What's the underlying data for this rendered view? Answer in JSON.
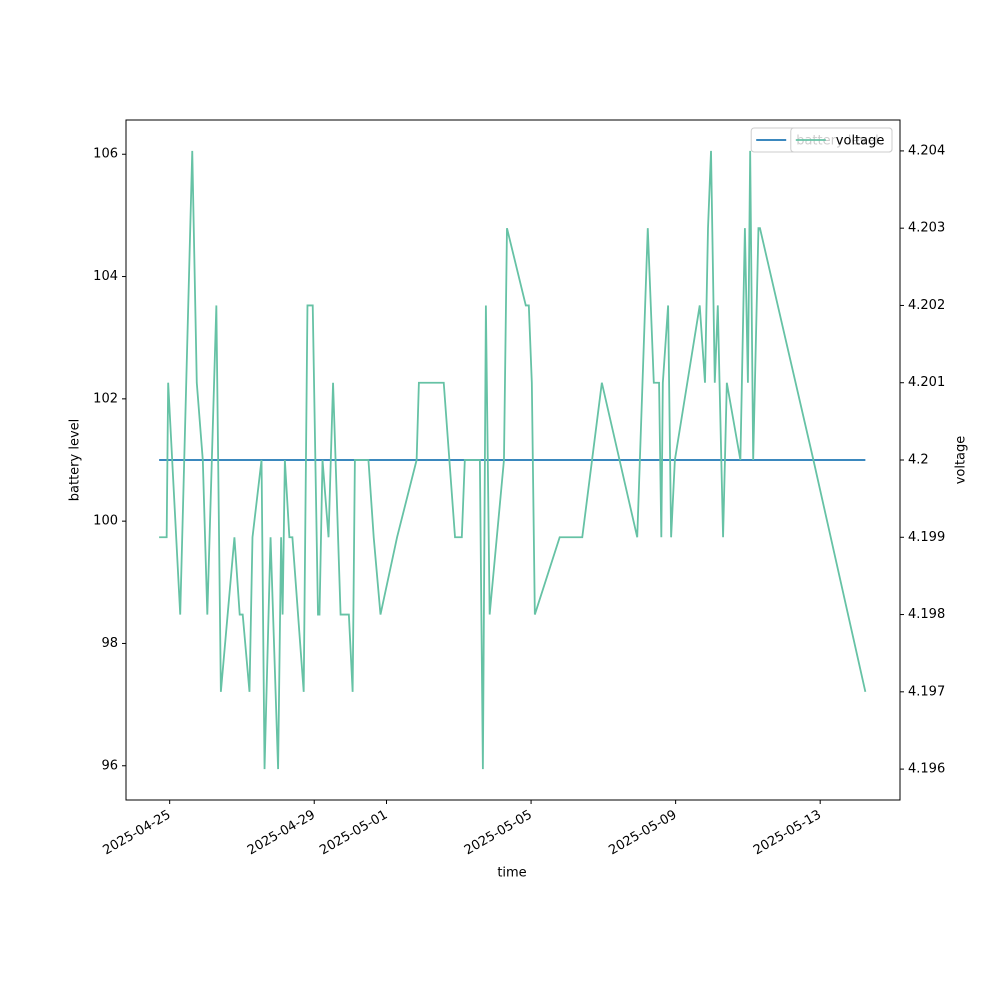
{
  "chart_data": {
    "type": "line",
    "xlabel": "time",
    "ylabel": "battery level",
    "y2label": "voltage",
    "xlim": [
      "2025-04-23 19:00",
      "2025-05-15 05:00"
    ],
    "xticks": [
      "2025-04-25",
      "2025-04-29",
      "2025-05-01",
      "2025-05-05",
      "2025-05-09",
      "2025-05-13"
    ],
    "ylim": [
      95.44,
      106.56
    ],
    "yticks": [
      96,
      98,
      100,
      102,
      104,
      106
    ],
    "y2lim": [
      4.1956,
      4.2044
    ],
    "y2ticks": [
      4.196,
      4.197,
      4.198,
      4.199,
      4.2,
      4.201,
      4.202,
      4.203,
      4.204
    ],
    "legend": "upper right",
    "series": [
      {
        "name": "battery level",
        "color": "#1f77b4",
        "axis": "y",
        "x": [
          "2025-04-24 17:00",
          "2025-05-14 06:00"
        ],
        "values": [
          101,
          101
        ]
      },
      {
        "name": "voltage",
        "color": "#66c2a5",
        "axis": "y2",
        "x": [
          "2025-04-24 17:00",
          "2025-04-24 22:00",
          "2025-04-24 23:00",
          "2025-04-25 07:00",
          "2025-04-25 15:00",
          "2025-04-25 18:00",
          "2025-04-25 22:00",
          "2025-04-26 01:00",
          "2025-04-26 07:00",
          "2025-04-26 10:00",
          "2025-04-26 19:00",
          "2025-04-26 22:30",
          "2025-04-27 00:30",
          "2025-04-27 05:00",
          "2025-04-27 07:00",
          "2025-04-27 13:00",
          "2025-04-27 15:00",
          "2025-04-27 19:00",
          "2025-04-28 00:00",
          "2025-04-28 02:00",
          "2025-04-28 03:00",
          "2025-04-28 04:30",
          "2025-04-28 07:30",
          "2025-04-28 09:30",
          "2025-04-28 17:00",
          "2025-04-28 19:30",
          "2025-04-28 23:00",
          "2025-04-29 02:30",
          "2025-04-29 03:30",
          "2025-04-29 05:30",
          "2025-04-29 09:30",
          "2025-04-29 12:30",
          "2025-04-29 17:30",
          "2025-04-29 23:00",
          "2025-04-30 01:30",
          "2025-04-30 03:00",
          "2025-04-30 09:30",
          "2025-04-30 12:00",
          "2025-04-30 15:30",
          "2025-04-30 20:00",
          "2025-05-01 07:00",
          "2025-05-01 20:00",
          "2025-05-01 21:30",
          "2025-05-02 14:00",
          "2025-05-02 21:30",
          "2025-05-03 02:00",
          "2025-05-03 04:00",
          "2025-05-03 12:30",
          "2025-05-03 14:00",
          "2025-05-03 16:00",
          "2025-05-03 18:00",
          "2025-05-03 20:30",
          "2025-05-04 06:00",
          "2025-05-04 08:00",
          "2025-05-04 20:30",
          "2025-05-04 22:30",
          "2025-05-05 00:30",
          "2025-05-05 02:30",
          "2025-05-05 19:00",
          "2025-05-06 10:00",
          "2025-05-06 23:00",
          "2025-05-07 22:30",
          "2025-05-08 05:30",
          "2025-05-08 09:30",
          "2025-05-08 13:00",
          "2025-05-08 14:30",
          "2025-05-08 15:30",
          "2025-05-08 19:00",
          "2025-05-08 21:00",
          "2025-05-08 23:30",
          "2025-05-09 16:00",
          "2025-05-09 19:30",
          "2025-05-09 21:30",
          "2025-05-09 23:30",
          "2025-05-10 02:00",
          "2025-05-10 04:00",
          "2025-05-10 07:30",
          "2025-05-10 10:00",
          "2025-05-10 19:00",
          "2025-05-10 22:00",
          "2025-05-11 00:00",
          "2025-05-11 01:30",
          "2025-05-11 03:30",
          "2025-05-11 07:00",
          "2025-05-11 08:00",
          "2025-05-12 19:30",
          "2025-05-14 06:00"
        ],
        "values": [
          4.199,
          4.199,
          4.201,
          4.198,
          4.204,
          4.201,
          4.2,
          4.198,
          4.202,
          4.197,
          4.199,
          4.198,
          4.198,
          4.197,
          4.199,
          4.2,
          4.196,
          4.199,
          4.196,
          4.199,
          4.198,
          4.2,
          4.199,
          4.199,
          4.197,
          4.202,
          4.202,
          4.198,
          4.198,
          4.2,
          4.199,
          4.201,
          4.198,
          4.198,
          4.197,
          4.2,
          4.2,
          4.2,
          4.199,
          4.198,
          4.199,
          4.2,
          4.201,
          4.201,
          4.199,
          4.199,
          4.2,
          4.2,
          4.2,
          4.196,
          4.202,
          4.198,
          4.2,
          4.203,
          4.202,
          4.202,
          4.201,
          4.198,
          4.199,
          4.199,
          4.201,
          4.199,
          4.203,
          4.201,
          4.201,
          4.199,
          4.201,
          4.202,
          4.199,
          4.2,
          4.202,
          4.201,
          4.203,
          4.204,
          4.201,
          4.202,
          4.199,
          4.201,
          4.2,
          4.203,
          4.201,
          4.204,
          4.2,
          4.203,
          4.203,
          4.2,
          4.197
        ]
      }
    ]
  }
}
